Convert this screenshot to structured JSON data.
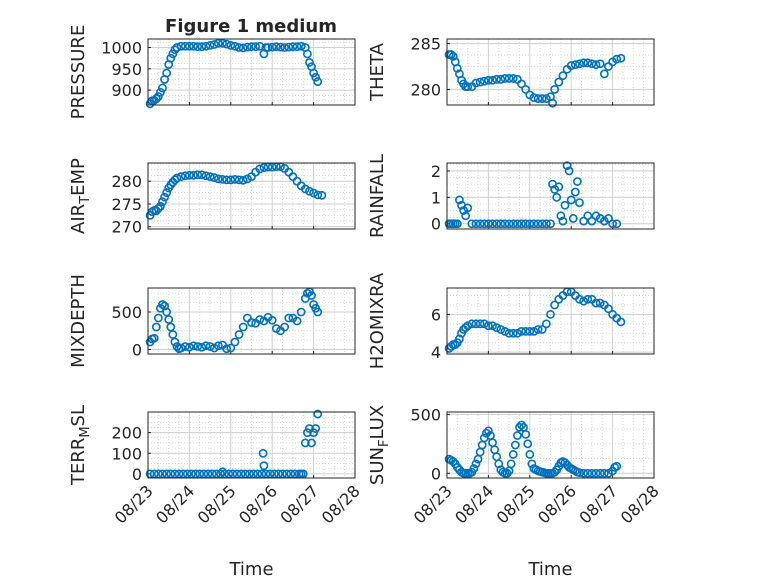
{
  "figure": {
    "title": "Figure 1 medium",
    "x_tick_labels": [
      "08/23",
      "08/24",
      "08/25",
      "08/26",
      "08/27",
      "08/28"
    ],
    "xlabel": "Time"
  },
  "colors": {
    "marker": "#0072BD",
    "axis": "#262626",
    "grid": "#d0d0d0"
  },
  "chart_data": [
    {
      "type": "scatter",
      "ylabel": "PRESSURE",
      "ylabel_sub": "",
      "ylabel_suffix": "",
      "yticks": [
        900,
        950,
        1000
      ],
      "ylim": [
        865,
        1020
      ],
      "xlim": [
        0,
        5
      ],
      "x_tick_labels_visible": false,
      "title": "Figure 1 medium",
      "x": [
        0.05,
        0.1,
        0.15,
        0.2,
        0.25,
        0.3,
        0.35,
        0.4,
        0.45,
        0.5,
        0.55,
        0.6,
        0.65,
        0.7,
        0.8,
        0.9,
        1.0,
        1.1,
        1.2,
        1.3,
        1.4,
        1.5,
        1.6,
        1.7,
        1.8,
        1.9,
        2.0,
        2.1,
        2.2,
        2.3,
        2.4,
        2.5,
        2.6,
        2.7,
        2.8,
        2.85,
        2.9,
        3.0,
        3.1,
        3.2,
        3.3,
        3.4,
        3.5,
        3.6,
        3.7,
        3.8,
        3.85,
        3.9,
        3.95,
        4.0,
        4.05,
        4.1
      ],
      "y": [
        868,
        875,
        876,
        880,
        885,
        895,
        905,
        925,
        940,
        960,
        975,
        985,
        995,
        1000,
        1003,
        1003,
        1003,
        1003,
        1002,
        1002,
        1003,
        1005,
        1007,
        1010,
        1010,
        1008,
        1005,
        1003,
        1000,
        999,
        1001,
        1002,
        1002,
        1003,
        985,
        1000,
        1000,
        1001,
        1002,
        1001,
        1000,
        1001,
        1002,
        1002,
        1003,
        1000,
        985,
        965,
        955,
        940,
        930,
        920
      ]
    },
    {
      "type": "scatter",
      "ylabel": "THETA",
      "ylabel_sub": "",
      "ylabel_suffix": "",
      "yticks": [
        280,
        285
      ],
      "ylim": [
        278.3,
        285.5
      ],
      "xlim": [
        0,
        5
      ],
      "x_tick_labels_visible": false,
      "x": [
        0.05,
        0.1,
        0.15,
        0.2,
        0.25,
        0.3,
        0.35,
        0.4,
        0.45,
        0.5,
        0.6,
        0.7,
        0.8,
        0.9,
        1.0,
        1.1,
        1.2,
        1.3,
        1.4,
        1.5,
        1.6,
        1.7,
        1.8,
        1.9,
        2.0,
        2.1,
        2.2,
        2.3,
        2.4,
        2.5,
        2.55,
        2.6,
        2.7,
        2.8,
        2.9,
        3.0,
        3.1,
        3.2,
        3.3,
        3.4,
        3.5,
        3.6,
        3.7,
        3.8,
        3.9,
        4.0,
        4.1,
        4.2
      ],
      "y": [
        283.8,
        283.8,
        283.6,
        283.0,
        282.3,
        281.7,
        281.0,
        280.6,
        280.3,
        280.3,
        280.3,
        280.7,
        280.8,
        280.9,
        281.0,
        281.0,
        281.1,
        281.1,
        281.2,
        281.2,
        281.2,
        281.1,
        280.6,
        280.0,
        279.4,
        279.1,
        279.0,
        279.0,
        279.0,
        279.2,
        278.5,
        280.0,
        280.8,
        281.5,
        282.2,
        282.6,
        282.7,
        282.8,
        282.9,
        282.9,
        282.8,
        282.7,
        282.8,
        281.7,
        282.5,
        283.0,
        283.3,
        283.4
      ]
    },
    {
      "type": "scatter",
      "ylabel": "AIR",
      "ylabel_sub": "T",
      "ylabel_suffix": "EMP",
      "yticks": [
        270,
        275,
        280
      ],
      "ylim": [
        269.5,
        284
      ],
      "xlim": [
        0,
        5
      ],
      "x_tick_labels_visible": false,
      "x": [
        0.05,
        0.1,
        0.15,
        0.2,
        0.25,
        0.3,
        0.35,
        0.4,
        0.45,
        0.5,
        0.55,
        0.6,
        0.65,
        0.7,
        0.8,
        0.9,
        1.0,
        1.1,
        1.2,
        1.3,
        1.4,
        1.5,
        1.6,
        1.7,
        1.8,
        1.9,
        2.0,
        2.1,
        2.2,
        2.3,
        2.4,
        2.5,
        2.6,
        2.7,
        2.8,
        2.9,
        3.0,
        3.1,
        3.2,
        3.3,
        3.4,
        3.5,
        3.6,
        3.7,
        3.8,
        3.9,
        4.0,
        4.1,
        4.2
      ],
      "y": [
        272.5,
        273.3,
        273.6,
        273.5,
        274.0,
        274.5,
        275.5,
        276.5,
        277.5,
        278.5,
        279.2,
        279.8,
        280.3,
        280.7,
        281.0,
        281.2,
        281.3,
        281.3,
        281.4,
        281.4,
        281.2,
        281.0,
        280.8,
        280.5,
        280.4,
        280.3,
        280.3,
        280.4,
        280.3,
        280.2,
        280.5,
        281.0,
        282.0,
        282.7,
        283.0,
        283.1,
        283.1,
        283.2,
        283.2,
        282.8,
        282.0,
        281.0,
        280.0,
        279.0,
        278.3,
        277.8,
        277.4,
        277.0,
        276.9
      ]
    },
    {
      "type": "scatter",
      "ylabel": "RAINFALL",
      "ylabel_sub": "",
      "ylabel_suffix": "",
      "yticks": [
        0,
        1,
        2
      ],
      "ylim": [
        -0.2,
        2.3
      ],
      "xlim": [
        0,
        5
      ],
      "x_tick_labels_visible": false,
      "x": [
        0.05,
        0.1,
        0.15,
        0.2,
        0.25,
        0.3,
        0.35,
        0.4,
        0.45,
        0.5,
        0.6,
        0.7,
        0.8,
        0.9,
        1.0,
        1.1,
        1.2,
        1.3,
        1.4,
        1.5,
        1.6,
        1.7,
        1.8,
        1.9,
        2.0,
        2.1,
        2.2,
        2.3,
        2.4,
        2.5,
        2.55,
        2.6,
        2.65,
        2.7,
        2.75,
        2.8,
        2.85,
        2.9,
        2.95,
        3.0,
        3.05,
        3.1,
        3.15,
        3.2,
        3.3,
        3.4,
        3.5,
        3.6,
        3.7,
        3.8,
        3.9,
        4.0,
        4.1
      ],
      "y": [
        0,
        0,
        0,
        0,
        0,
        0.9,
        0.7,
        0.5,
        0.3,
        0.6,
        0,
        0,
        0,
        0,
        0,
        0,
        0,
        0,
        0,
        0,
        0,
        0,
        0,
        0,
        0,
        0,
        0,
        0,
        0,
        0,
        1.5,
        1.3,
        1.0,
        1.4,
        0.3,
        0.1,
        0.7,
        2.2,
        2.0,
        0.9,
        0.2,
        1.2,
        1.6,
        0.8,
        0.1,
        0.3,
        0.1,
        0.3,
        0.2,
        0.1,
        0.2,
        0,
        0
      ]
    },
    {
      "type": "scatter",
      "ylabel": "MIXDEPTH",
      "ylabel_sub": "",
      "ylabel_suffix": "",
      "yticks": [
        0,
        500
      ],
      "ylim": [
        -60,
        820
      ],
      "xlim": [
        0,
        5
      ],
      "x_tick_labels_visible": false,
      "x": [
        0.05,
        0.1,
        0.15,
        0.2,
        0.25,
        0.3,
        0.35,
        0.4,
        0.45,
        0.5,
        0.55,
        0.6,
        0.65,
        0.7,
        0.75,
        0.8,
        0.9,
        1.0,
        1.1,
        1.2,
        1.3,
        1.4,
        1.5,
        1.6,
        1.7,
        1.8,
        1.9,
        2.0,
        2.1,
        2.2,
        2.3,
        2.4,
        2.5,
        2.6,
        2.7,
        2.8,
        2.9,
        3.0,
        3.1,
        3.2,
        3.3,
        3.4,
        3.5,
        3.6,
        3.7,
        3.8,
        3.85,
        3.9,
        3.95,
        4.0,
        4.05,
        4.1
      ],
      "y": [
        100,
        140,
        150,
        300,
        420,
        550,
        600,
        580,
        500,
        400,
        300,
        200,
        100,
        40,
        10,
        20,
        40,
        30,
        50,
        40,
        30,
        50,
        40,
        20,
        50,
        60,
        10,
        20,
        100,
        200,
        300,
        420,
        360,
        350,
        400,
        380,
        430,
        390,
        280,
        250,
        300,
        420,
        420,
        380,
        500,
        680,
        750,
        770,
        720,
        600,
        550,
        500
      ]
    },
    {
      "type": "scatter",
      "ylabel": "H2OMIXRA",
      "ylabel_sub": "",
      "ylabel_suffix": "",
      "yticks": [
        4,
        6
      ],
      "ylim": [
        3.9,
        7.4
      ],
      "xlim": [
        0,
        5
      ],
      "x_tick_labels_visible": false,
      "x": [
        0.05,
        0.1,
        0.15,
        0.2,
        0.25,
        0.3,
        0.35,
        0.4,
        0.45,
        0.5,
        0.6,
        0.7,
        0.8,
        0.9,
        1.0,
        1.1,
        1.2,
        1.3,
        1.4,
        1.5,
        1.6,
        1.7,
        1.8,
        1.9,
        2.0,
        2.1,
        2.2,
        2.3,
        2.4,
        2.5,
        2.6,
        2.7,
        2.8,
        2.9,
        3.0,
        3.1,
        3.2,
        3.3,
        3.4,
        3.5,
        3.6,
        3.7,
        3.8,
        3.9,
        4.0,
        4.1,
        4.2
      ],
      "y": [
        4.2,
        4.3,
        4.4,
        4.4,
        4.5,
        4.7,
        5.0,
        5.2,
        5.3,
        5.4,
        5.5,
        5.5,
        5.5,
        5.5,
        5.4,
        5.4,
        5.3,
        5.2,
        5.1,
        5.0,
        5.0,
        5.0,
        5.1,
        5.1,
        5.1,
        5.1,
        5.2,
        5.2,
        5.5,
        6.0,
        6.5,
        6.8,
        7.0,
        7.2,
        7.2,
        7.0,
        6.8,
        6.7,
        6.8,
        6.8,
        6.6,
        6.6,
        6.5,
        6.3,
        6.0,
        5.8,
        5.6
      ]
    },
    {
      "type": "scatter",
      "ylabel": "TERR",
      "ylabel_sub": "M",
      "ylabel_suffix": "SL",
      "yticks": [
        0,
        100,
        200
      ],
      "ylim": [
        -20,
        300
      ],
      "xlim": [
        0,
        5
      ],
      "x_tick_labels_visible": true,
      "xlabel": "Time",
      "x": [
        0.05,
        0.15,
        0.25,
        0.35,
        0.45,
        0.55,
        0.65,
        0.75,
        0.85,
        0.95,
        1.05,
        1.15,
        1.25,
        1.35,
        1.45,
        1.55,
        1.65,
        1.75,
        1.8,
        1.85,
        1.95,
        2.05,
        2.15,
        2.25,
        2.35,
        2.45,
        2.55,
        2.65,
        2.75,
        2.78,
        2.8,
        2.85,
        2.95,
        3.05,
        3.15,
        3.25,
        3.35,
        3.45,
        3.55,
        3.65,
        3.7,
        3.75,
        3.8,
        3.85,
        3.9,
        3.95,
        4.0,
        4.05,
        4.1
      ],
      "y": [
        0,
        0,
        0,
        0,
        0,
        0,
        0,
        0,
        0,
        0,
        0,
        0,
        0,
        0,
        0,
        0,
        0,
        0,
        10,
        0,
        0,
        0,
        0,
        0,
        0,
        0,
        0,
        0,
        0,
        100,
        40,
        0,
        0,
        0,
        0,
        0,
        0,
        0,
        0,
        0,
        0,
        0,
        150,
        200,
        220,
        150,
        200,
        220,
        290
      ]
    },
    {
      "type": "scatter",
      "ylabel": "SUN",
      "ylabel_sub": "F",
      "ylabel_suffix": "LUX",
      "yticks": [
        0,
        500
      ],
      "ylim": [
        -40,
        520
      ],
      "xlim": [
        0,
        5
      ],
      "x_tick_labels_visible": true,
      "xlabel": "Time",
      "x": [
        0.05,
        0.1,
        0.15,
        0.2,
        0.25,
        0.3,
        0.35,
        0.4,
        0.45,
        0.5,
        0.55,
        0.6,
        0.65,
        0.7,
        0.75,
        0.8,
        0.85,
        0.9,
        0.95,
        1.0,
        1.05,
        1.1,
        1.15,
        1.2,
        1.25,
        1.3,
        1.35,
        1.4,
        1.45,
        1.5,
        1.55,
        1.6,
        1.65,
        1.7,
        1.75,
        1.8,
        1.85,
        1.9,
        1.95,
        2.0,
        2.05,
        2.1,
        2.15,
        2.2,
        2.25,
        2.3,
        2.35,
        2.4,
        2.45,
        2.5,
        2.55,
        2.6,
        2.65,
        2.7,
        2.75,
        2.8,
        2.85,
        2.9,
        2.95,
        3.0,
        3.05,
        3.1,
        3.15,
        3.2,
        3.3,
        3.4,
        3.5,
        3.6,
        3.7,
        3.8,
        3.9,
        4.0,
        4.05,
        4.1
      ],
      "y": [
        120,
        110,
        100,
        80,
        50,
        30,
        10,
        0,
        0,
        0,
        0,
        10,
        40,
        80,
        120,
        180,
        240,
        300,
        340,
        360,
        320,
        260,
        200,
        140,
        80,
        30,
        10,
        0,
        0,
        20,
        80,
        160,
        240,
        320,
        390,
        410,
        390,
        330,
        250,
        160,
        80,
        40,
        30,
        20,
        15,
        10,
        5,
        0,
        0,
        0,
        0,
        10,
        30,
        60,
        90,
        100,
        90,
        70,
        50,
        40,
        30,
        20,
        10,
        5,
        0,
        0,
        0,
        0,
        0,
        0,
        0,
        20,
        50,
        60
      ]
    }
  ]
}
